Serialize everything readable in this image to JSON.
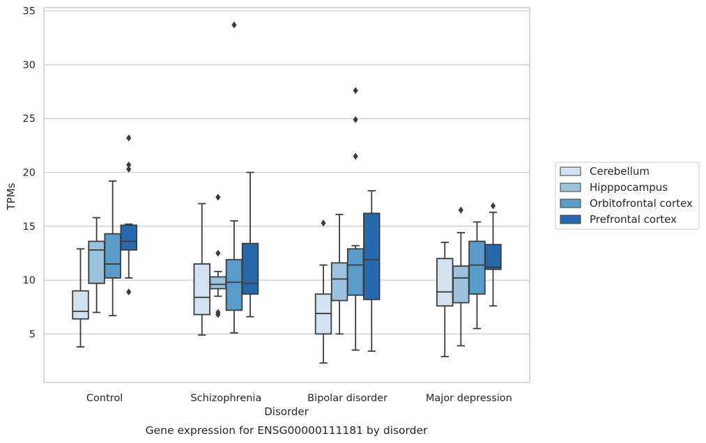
{
  "chart_data": {
    "type": "boxplot",
    "title": "",
    "caption": "Gene expression for ENSG00000111181 by disorder",
    "xlabel": "Disorder",
    "ylabel": "TPMs",
    "ylim": [
      0.5,
      35.3
    ],
    "yticks": [
      5,
      10,
      15,
      20,
      25,
      30,
      35
    ],
    "grid": "horizontal",
    "legend_position": "right",
    "categories": [
      "Control",
      "Schizophrenia",
      "Bipolar disorder",
      "Major depression"
    ],
    "series": [
      {
        "name": "Cerebellum",
        "color": "#d2e2f1",
        "boxes": [
          {
            "whislo": 3.8,
            "q1": 6.4,
            "med": 7.1,
            "q3": 9.0,
            "whishi": 12.9,
            "fliers": []
          },
          {
            "whislo": 4.9,
            "q1": 6.8,
            "med": 8.4,
            "q3": 11.5,
            "whishi": 17.1,
            "fliers": []
          },
          {
            "whislo": 2.3,
            "q1": 5.0,
            "med": 6.9,
            "q3": 8.7,
            "whishi": 11.4,
            "fliers": [
              15.3
            ]
          },
          {
            "whislo": 2.9,
            "q1": 7.6,
            "med": 8.9,
            "q3": 12.0,
            "whishi": 13.5,
            "fliers": []
          }
        ]
      },
      {
        "name": "Hipppocampus",
        "color": "#9bc3de",
        "boxes": [
          {
            "whislo": 7.0,
            "q1": 9.7,
            "med": 12.8,
            "q3": 13.6,
            "whishi": 15.8,
            "fliers": []
          },
          {
            "whislo": 8.5,
            "q1": 9.2,
            "med": 9.6,
            "q3": 10.3,
            "whishi": 10.8,
            "fliers": [
              6.8,
              7.0,
              12.5,
              17.7
            ]
          },
          {
            "whislo": 5.0,
            "q1": 8.1,
            "med": 10.1,
            "q3": 11.6,
            "whishi": 16.1,
            "fliers": []
          },
          {
            "whislo": 3.9,
            "q1": 7.9,
            "med": 10.2,
            "q3": 11.3,
            "whishi": 14.4,
            "fliers": [
              16.5
            ]
          }
        ]
      },
      {
        "name": "Orbitofrontal cortex",
        "color": "#5a9cc9",
        "boxes": [
          {
            "whislo": 6.7,
            "q1": 10.2,
            "med": 11.5,
            "q3": 14.3,
            "whishi": 19.2,
            "fliers": []
          },
          {
            "whislo": 5.1,
            "q1": 7.2,
            "med": 9.8,
            "q3": 11.9,
            "whishi": 15.5,
            "fliers": [
              33.7
            ]
          },
          {
            "whislo": 3.5,
            "q1": 8.6,
            "med": 11.4,
            "q3": 12.9,
            "whishi": 13.2,
            "fliers": [
              21.5,
              24.9,
              27.6
            ]
          },
          {
            "whislo": 5.5,
            "q1": 8.7,
            "med": 11.4,
            "q3": 13.6,
            "whishi": 15.4,
            "fliers": []
          }
        ]
      },
      {
        "name": "Prefrontal cortex",
        "color": "#2669ac",
        "boxes": [
          {
            "whislo": 10.2,
            "q1": 12.8,
            "med": 13.6,
            "q3": 15.1,
            "whishi": 15.2,
            "fliers": [
              8.9,
              20.3,
              20.7,
              23.2
            ]
          },
          {
            "whislo": 6.6,
            "q1": 8.7,
            "med": 9.7,
            "q3": 13.4,
            "whishi": 20.0,
            "fliers": []
          },
          {
            "whislo": 3.4,
            "q1": 8.2,
            "med": 11.9,
            "q3": 16.2,
            "whishi": 18.3,
            "fliers": []
          },
          {
            "whislo": 7.6,
            "q1": 11.0,
            "med": 11.2,
            "q3": 13.3,
            "whishi": 16.3,
            "fliers": [
              16.9
            ]
          }
        ]
      }
    ]
  }
}
